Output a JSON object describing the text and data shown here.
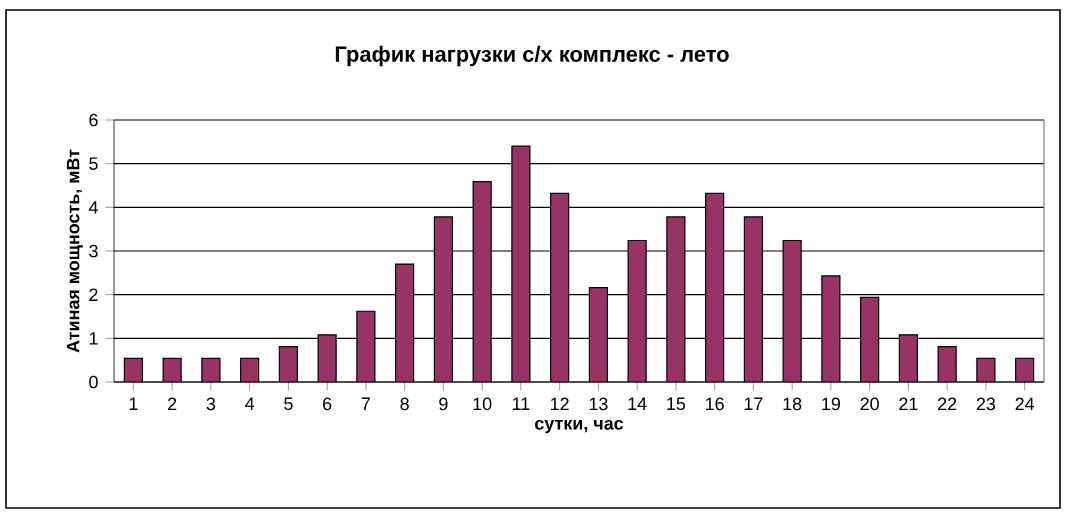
{
  "chart_data": {
    "type": "bar",
    "title": "График нагрузки с/х комплекс - лето",
    "xlabel": "сутки, час",
    "ylabel": "Атиная мощность, мВт",
    "categories": [
      "1",
      "2",
      "3",
      "4",
      "5",
      "6",
      "7",
      "8",
      "9",
      "10",
      "11",
      "12",
      "13",
      "14",
      "15",
      "16",
      "17",
      "18",
      "19",
      "20",
      "21",
      "22",
      "23",
      "24"
    ],
    "values": [
      0.54,
      0.54,
      0.54,
      0.54,
      0.81,
      1.08,
      1.62,
      2.7,
      3.78,
      4.59,
      5.4,
      4.32,
      2.16,
      3.24,
      3.78,
      4.32,
      3.78,
      3.24,
      2.43,
      1.94,
      1.08,
      0.81,
      0.54,
      0.54
    ],
    "color": "#993366",
    "ylim": [
      0,
      6
    ],
    "yticks": [
      0,
      1,
      2,
      3,
      4,
      5,
      6
    ],
    "grid": "y"
  }
}
